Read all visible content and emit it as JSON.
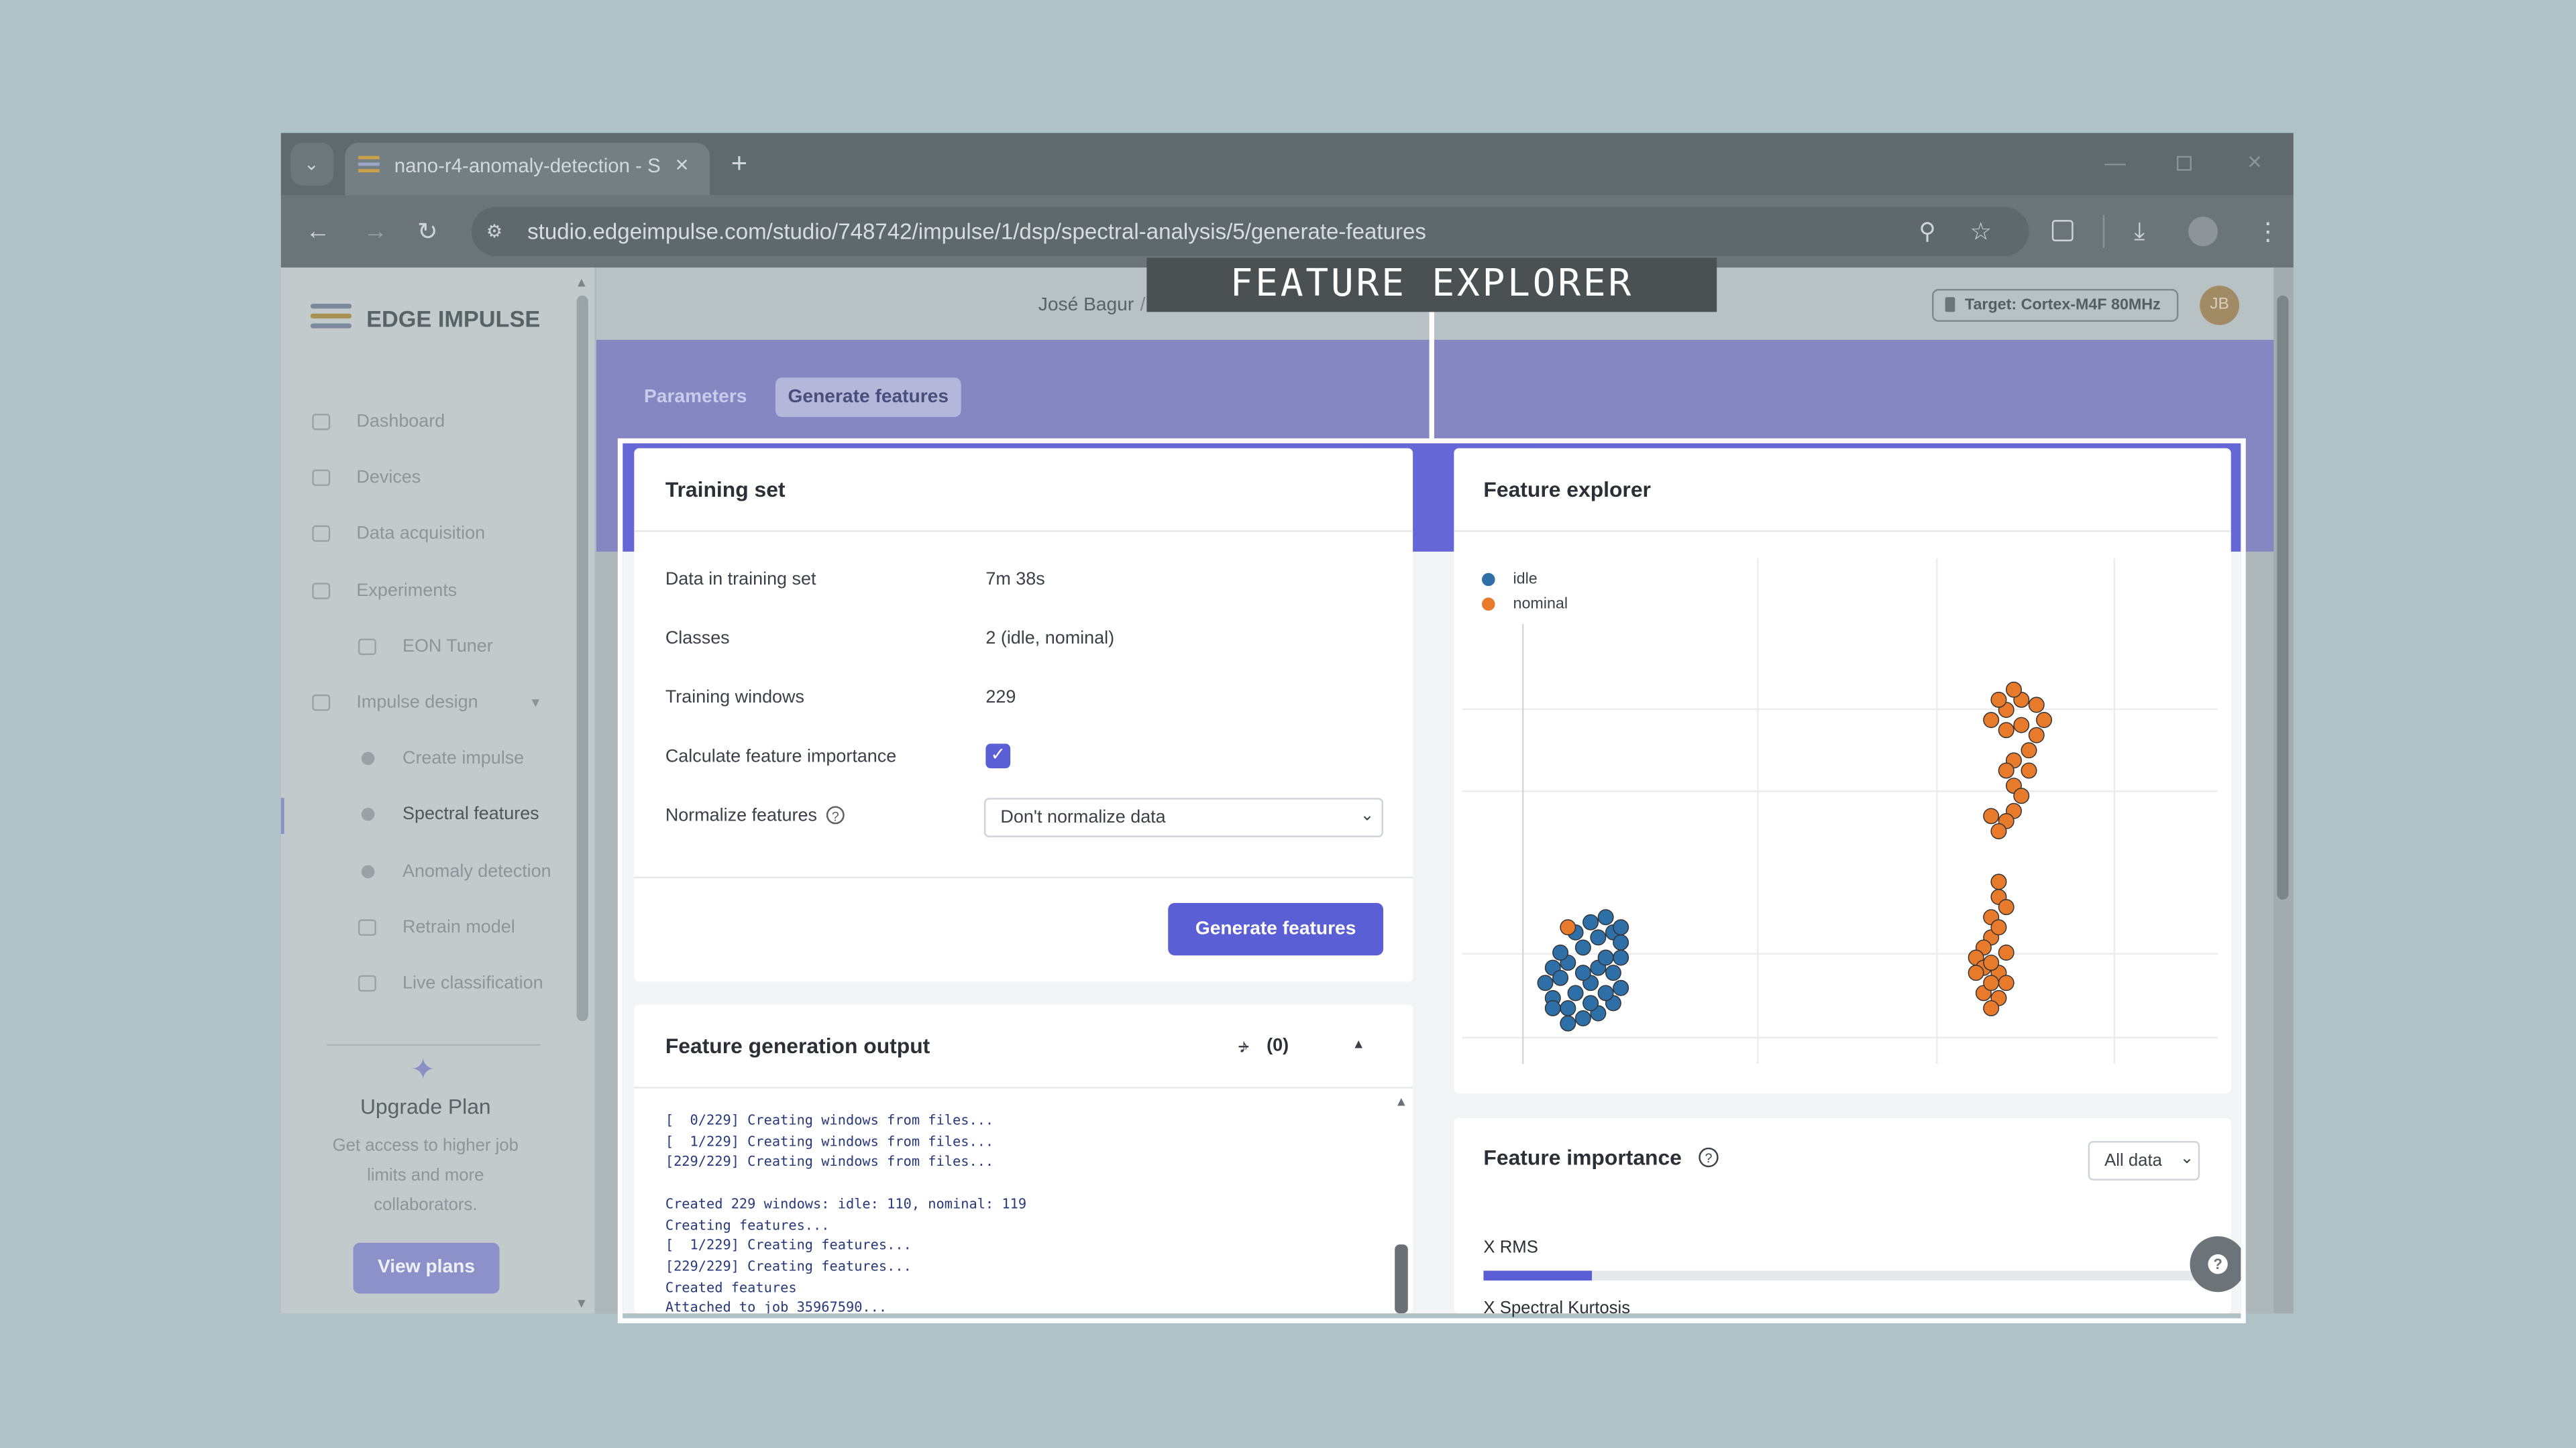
{
  "overlay_label": "FEATURE EXPLORER",
  "browser": {
    "tab_title": "nano-r4-anomaly-detection - S",
    "url": "studio.edgeimpulse.com/studio/748742/impulse/1/dsp/spectral-analysis/5/generate-features"
  },
  "sidebar": {
    "brand": "EDGE IMPULSE",
    "nav": [
      {
        "label": "Dashboard",
        "level": 0
      },
      {
        "label": "Devices",
        "level": 0
      },
      {
        "label": "Data acquisition",
        "level": 0
      },
      {
        "label": "Experiments",
        "level": 0
      },
      {
        "label": "EON Tuner",
        "level": 1
      },
      {
        "label": "Impulse design",
        "level": 0
      },
      {
        "label": "Create impulse",
        "level": 1
      },
      {
        "label": "Spectral features",
        "level": 1,
        "active": true
      },
      {
        "label": "Anomaly detection",
        "level": 1
      },
      {
        "label": "Retrain model",
        "level": 1
      },
      {
        "label": "Live classification",
        "level": 1
      }
    ],
    "upgrade": {
      "title": "Upgrade Plan",
      "text": "Get access to higher job limits and more collaborators.",
      "button": "View plans"
    }
  },
  "header": {
    "user": "José Bagur",
    "target": "Target: Cortex-M4F 80MHz",
    "avatar": "JB"
  },
  "tabs": [
    "Parameters",
    "Generate features"
  ],
  "training_set": {
    "title": "Training set",
    "rows": [
      {
        "label": "Data in training set",
        "value": "7m 38s"
      },
      {
        "label": "Classes",
        "value": "2 (idle, nominal)"
      },
      {
        "label": "Training windows",
        "value": "229"
      }
    ],
    "checkbox_label": "Calculate feature importance",
    "normalize_label": "Normalize features",
    "normalize_value": "Don't normalize data",
    "button": "Generate features"
  },
  "output": {
    "title": "Feature generation output",
    "notifications": "(0)",
    "log": [
      [
        "[  0/229] Creating windows from files...",
        "[  1/229] Creating windows from files...",
        "[229/229] Creating windows from files..."
      ],
      [
        "Created 229 windows: idle: 110, nominal: 119",
        "Creating features...",
        "[  1/229] Creating features...",
        "[229/229] Creating features...",
        "Created features",
        "Attached to job 35967590..."
      ]
    ]
  },
  "feature_explorer": {
    "type": "scatter",
    "title": "Feature explorer",
    "xlim": [
      0,
      100
    ],
    "ylim": [
      0,
      100
    ],
    "series": [
      {
        "name": "idle",
        "color": "#2f6fa8",
        "x": [
          14,
          16,
          18,
          20,
          21,
          21,
          20,
          21,
          20,
          18,
          16,
          14,
          12,
          11,
          12,
          13,
          15,
          17,
          18,
          16,
          19,
          17,
          13,
          19,
          15,
          17,
          19,
          21,
          12,
          14
        ],
        "y": [
          20,
          23,
          25,
          26,
          24,
          21,
          18,
          15,
          12,
          10,
          9,
          11,
          13,
          16,
          19,
          22,
          14,
          16,
          19,
          18,
          21,
          12,
          17,
          14,
          26,
          28,
          29,
          27,
          11,
          8
        ]
      },
      {
        "name": "nominal",
        "color": "#e87a2c",
        "x": [
          72,
          74,
          76,
          77,
          76,
          75,
          73,
          72,
          73,
          74,
          73,
          72,
          71,
          70,
          72,
          70,
          71,
          73,
          75,
          74,
          71,
          71,
          72,
          70,
          70,
          69,
          68,
          69,
          71,
          72,
          71,
          70,
          69,
          70,
          72,
          71,
          68,
          70,
          14
        ],
        "y": [
          70,
          72,
          71,
          68,
          65,
          62,
          60,
          58,
          55,
          53,
          50,
          48,
          46,
          49,
          66,
          68,
          72,
          74,
          58,
          67,
          36,
          33,
          31,
          29,
          25,
          23,
          21,
          19,
          18,
          16,
          13,
          11,
          14,
          20,
          22,
          27,
          18,
          16,
          27
        ]
      }
    ]
  },
  "feature_importance": {
    "title": "Feature importance",
    "select": "All data",
    "xlim": [
      0,
      100
    ],
    "features": [
      {
        "name": "X RMS",
        "value": 15
      },
      {
        "name": "X Spectral Kurtosis"
      }
    ]
  }
}
